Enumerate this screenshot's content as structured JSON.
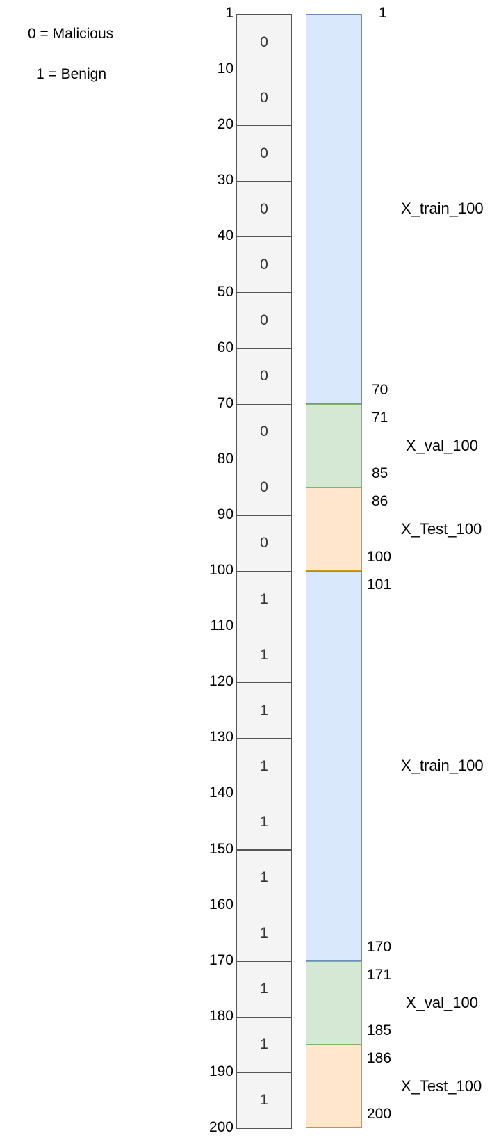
{
  "legend": {
    "malicious": "0 = Malicious",
    "benign": "1 = Benign"
  },
  "row_ticks": [
    "1",
    "10",
    "20",
    "30",
    "40",
    "50",
    "60",
    "70",
    "80",
    "90",
    "100",
    "110",
    "120",
    "130",
    "140",
    "150",
    "160",
    "170",
    "180",
    "190",
    "200"
  ],
  "label_cells": [
    "0",
    "0",
    "0",
    "0",
    "0",
    "0",
    "0",
    "0",
    "0",
    "0",
    "1",
    "1",
    "1",
    "1",
    "1",
    "1",
    "1",
    "1",
    "1",
    "1"
  ],
  "segments": [
    {
      "type": "train",
      "start": "1",
      "end": "70",
      "name": "X_train_100"
    },
    {
      "type": "val",
      "start": "71",
      "end": "85",
      "name": "X_val_100"
    },
    {
      "type": "test",
      "start": "86",
      "end": "100",
      "name": "X_Test_100"
    },
    {
      "type": "train",
      "start": "101",
      "end": "170",
      "name": "X_train_100"
    },
    {
      "type": "val",
      "start": "171",
      "end": "185",
      "name": "X_val_100"
    },
    {
      "type": "test",
      "start": "186",
      "end": "200",
      "name": "X_Test_100"
    }
  ]
}
